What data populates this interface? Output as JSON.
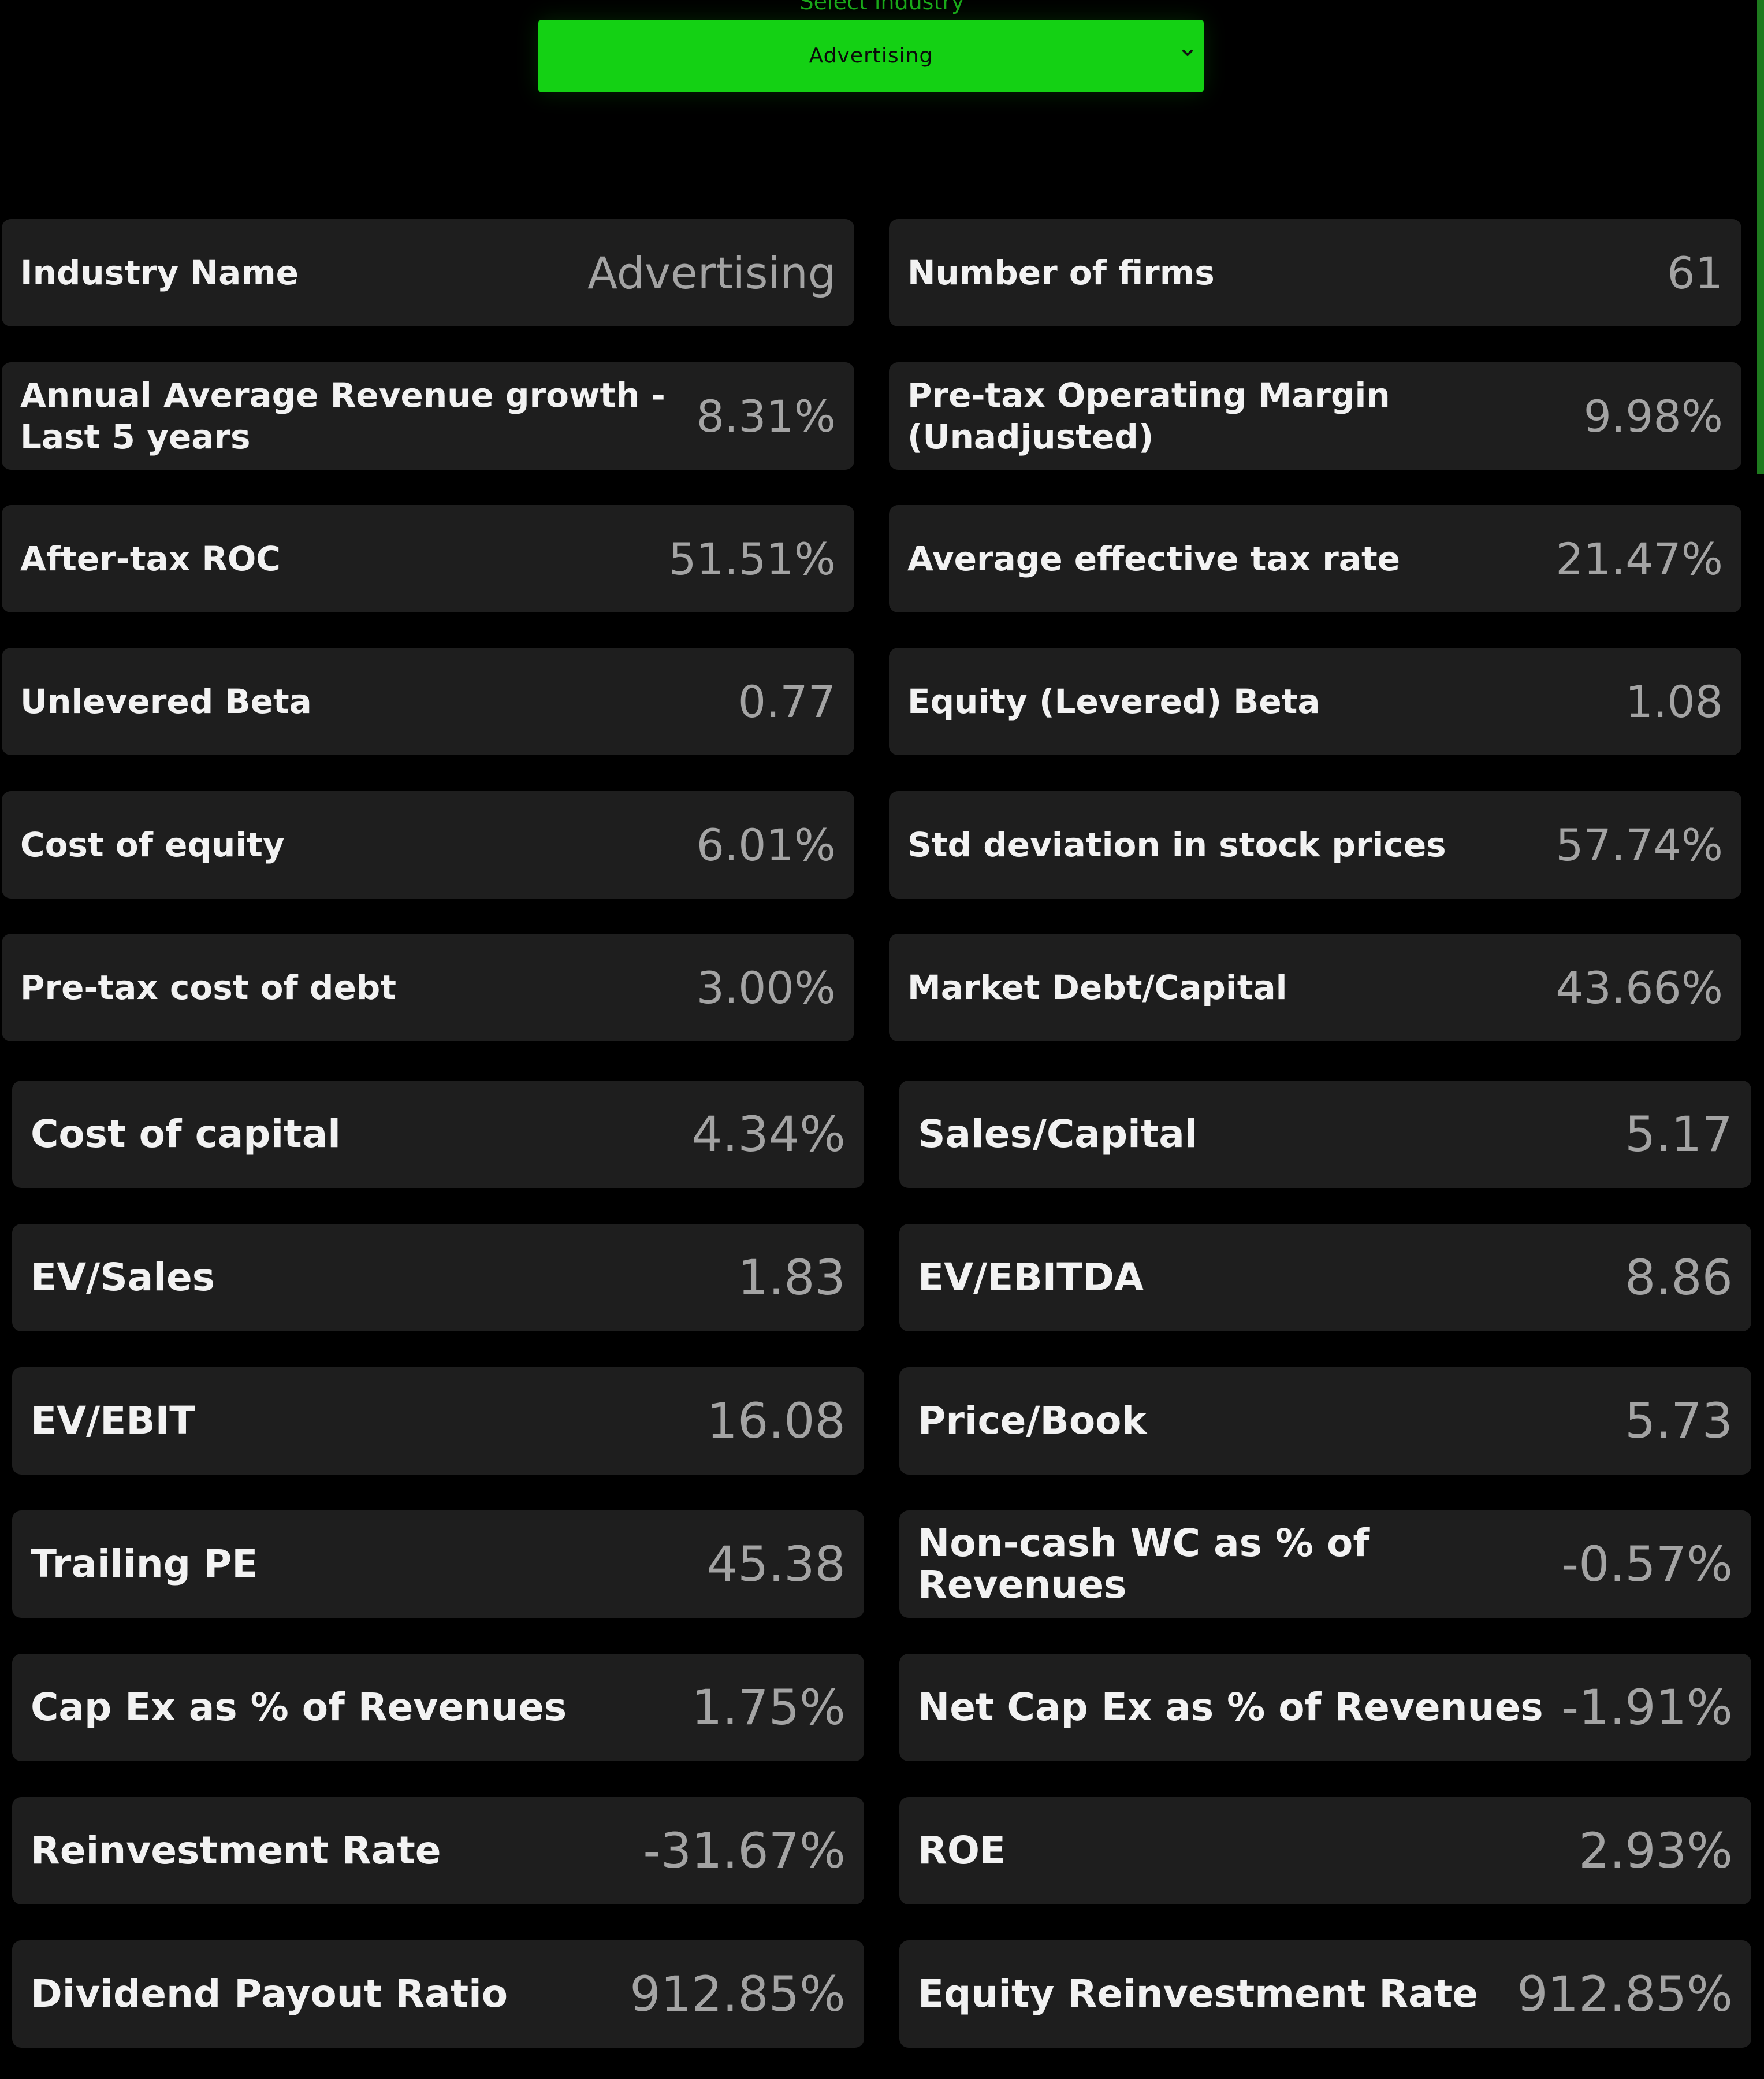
{
  "selector": {
    "label": "Select industry",
    "value": "Advertising",
    "accent_color": "#14d114"
  },
  "metrics": [
    {
      "label": "Industry Name",
      "value": "Advertising"
    },
    {
      "label": "Number of firms",
      "value": "61"
    },
    {
      "label": "Annual Average Revenue growth - Last 5 years",
      "value": "8.31%"
    },
    {
      "label": "Pre-tax Operating Margin (Unadjusted)",
      "value": "9.98%"
    },
    {
      "label": "After-tax ROC",
      "value": "51.51%"
    },
    {
      "label": "Average effective tax rate",
      "value": "21.47%"
    },
    {
      "label": "Unlevered Beta",
      "value": "0.77"
    },
    {
      "label": "Equity (Levered) Beta",
      "value": "1.08"
    },
    {
      "label": "Cost of equity",
      "value": "6.01%"
    },
    {
      "label": "Std deviation in stock prices",
      "value": "57.74%"
    },
    {
      "label": "Pre-tax cost of debt",
      "value": "3.00%"
    },
    {
      "label": "Market Debt/Capital",
      "value": "43.66%"
    },
    {
      "label": "Cost of capital",
      "value": "4.34%"
    },
    {
      "label": "Sales/Capital",
      "value": "5.17"
    },
    {
      "label": "EV/Sales",
      "value": "1.83"
    },
    {
      "label": "EV/EBITDA",
      "value": "8.86"
    },
    {
      "label": "EV/EBIT",
      "value": "16.08"
    },
    {
      "label": "Price/Book",
      "value": "5.73"
    },
    {
      "label": "Trailing PE",
      "value": "45.38"
    },
    {
      "label": "Non-cash WC as % of Revenues",
      "value": "-0.57%"
    },
    {
      "label": "Cap Ex as % of Revenues",
      "value": "1.75%"
    },
    {
      "label": "Net Cap Ex as % of Revenues",
      "value": "-1.91%"
    },
    {
      "label": "Reinvestment Rate",
      "value": "-31.67%"
    },
    {
      "label": "ROE",
      "value": "2.93%"
    },
    {
      "label": "Dividend Payout Ratio",
      "value": "912.85%"
    },
    {
      "label": "Equity Reinvestment Rate",
      "value": "912.85%"
    }
  ]
}
